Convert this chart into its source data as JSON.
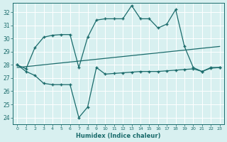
{
  "line1_x": [
    0,
    1,
    2,
    3,
    4,
    5,
    6,
    7,
    8,
    9,
    10,
    11,
    12,
    13,
    14,
    15,
    16,
    17,
    18,
    19,
    20,
    21,
    22,
    23
  ],
  "line1_y": [
    28.0,
    27.7,
    29.3,
    30.1,
    30.25,
    30.3,
    30.3,
    27.8,
    30.1,
    31.4,
    31.5,
    31.5,
    31.5,
    32.5,
    31.5,
    31.5,
    30.8,
    31.1,
    32.2,
    29.4,
    27.8,
    27.5,
    27.8,
    27.8
  ],
  "line2_x": [
    0,
    23
  ],
  "line2_y": [
    27.8,
    29.4
  ],
  "line3_x": [
    0,
    1,
    2,
    3,
    4,
    5,
    6,
    7,
    8,
    9,
    10,
    11,
    12,
    13,
    14,
    15,
    16,
    17,
    18,
    19,
    20,
    21,
    22,
    23
  ],
  "line3_y": [
    28.0,
    27.5,
    27.2,
    26.6,
    26.5,
    26.5,
    26.5,
    24.0,
    24.8,
    27.8,
    27.3,
    27.35,
    27.4,
    27.45,
    27.5,
    27.5,
    27.5,
    27.55,
    27.6,
    27.65,
    27.7,
    27.5,
    27.75,
    27.8
  ],
  "color": "#1a6b6b",
  "bg_color": "#d8f0f0",
  "grid_color": "#ffffff",
  "xlabel": "Humidex (Indice chaleur)",
  "ylim": [
    23.5,
    32.7
  ],
  "xlim": [
    -0.5,
    23.5
  ],
  "yticks": [
    24,
    25,
    26,
    27,
    28,
    29,
    30,
    31,
    32
  ],
  "xticks": [
    0,
    1,
    2,
    3,
    4,
    5,
    6,
    7,
    8,
    9,
    10,
    11,
    12,
    13,
    14,
    15,
    16,
    17,
    18,
    19,
    20,
    21,
    22,
    23
  ]
}
